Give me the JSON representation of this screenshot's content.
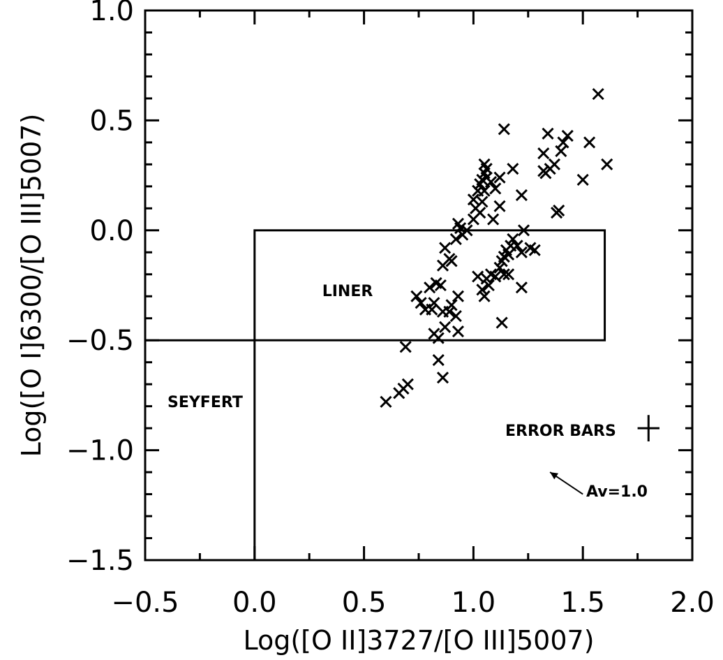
{
  "chart_data": {
    "type": "scatter",
    "title": "",
    "xlabel": "Log([O II]3727/[O III]5007)",
    "ylabel": "Log([O I]6300/[O III]5007)",
    "xlim": [
      -0.5,
      2.0
    ],
    "ylim": [
      -1.5,
      1.0
    ],
    "x_ticks": [
      -0.5,
      0.0,
      0.5,
      1.0,
      1.5,
      2.0
    ],
    "x_tick_labels": [
      "−0.5",
      "0.0",
      "0.5",
      "1.0",
      "1.5",
      "2.0"
    ],
    "y_ticks": [
      -1.5,
      -1.0,
      -0.5,
      0.0,
      0.5,
      1.0
    ],
    "y_tick_labels": [
      "−1.5",
      "−1.0",
      "−0.5",
      "0.0",
      "0.5",
      "1.0"
    ],
    "grid": false,
    "marker": "x",
    "marker_color": "#000000",
    "regions": {
      "liner_box": {
        "x": [
          0.0,
          1.6
        ],
        "y": [
          -0.5,
          0.0
        ],
        "label": "LINER"
      },
      "seyfert": {
        "x_max": 0.0,
        "y_max": -0.5,
        "label": "SEYFERT"
      }
    },
    "error_bars": {
      "label": "ERROR BARS",
      "x": 1.8,
      "y": -0.9,
      "dx": 0.05,
      "dy": 0.06
    },
    "reddening_vector": {
      "label": "Av=1.0",
      "from": [
        1.5,
        -1.2
      ],
      "to": [
        1.35,
        -1.1
      ]
    },
    "points": [
      [
        0.6,
        -0.78
      ],
      [
        0.66,
        -0.74
      ],
      [
        0.68,
        -0.72
      ],
      [
        0.7,
        -0.7
      ],
      [
        0.69,
        -0.53
      ],
      [
        0.84,
        -0.59
      ],
      [
        0.86,
        -0.67
      ],
      [
        0.82,
        -0.47
      ],
      [
        0.84,
        -0.49
      ],
      [
        0.74,
        -0.3
      ],
      [
        0.76,
        -0.33
      ],
      [
        0.78,
        -0.36
      ],
      [
        0.8,
        -0.26
      ],
      [
        0.82,
        -0.33
      ],
      [
        0.81,
        -0.36
      ],
      [
        0.83,
        -0.24
      ],
      [
        0.85,
        -0.25
      ],
      [
        0.86,
        -0.37
      ],
      [
        0.87,
        -0.44
      ],
      [
        0.89,
        -0.37
      ],
      [
        0.9,
        -0.34
      ],
      [
        0.92,
        -0.39
      ],
      [
        0.93,
        -0.46
      ],
      [
        0.93,
        -0.3
      ],
      [
        0.86,
        -0.16
      ],
      [
        0.87,
        -0.08
      ],
      [
        0.89,
        -0.13
      ],
      [
        0.9,
        -0.14
      ],
      [
        0.92,
        -0.04
      ],
      [
        0.94,
        0.01
      ],
      [
        0.95,
        -0.02
      ],
      [
        0.97,
        0.0
      ],
      [
        0.93,
        0.03
      ],
      [
        1.0,
        0.05
      ],
      [
        1.01,
        0.1
      ],
      [
        1.03,
        0.08
      ],
      [
        1.04,
        0.13
      ],
      [
        1.05,
        0.18
      ],
      [
        1.0,
        0.14
      ],
      [
        1.02,
        0.18
      ],
      [
        1.03,
        0.21
      ],
      [
        1.04,
        0.23
      ],
      [
        1.05,
        0.26
      ],
      [
        1.06,
        0.28
      ],
      [
        1.08,
        0.22
      ],
      [
        1.1,
        0.19
      ],
      [
        1.12,
        0.11
      ],
      [
        1.09,
        0.05
      ],
      [
        1.06,
        0.24
      ],
      [
        1.05,
        0.3
      ],
      [
        1.14,
        0.46
      ],
      [
        1.12,
        0.24
      ],
      [
        1.18,
        0.28
      ],
      [
        1.22,
        0.16
      ],
      [
        1.02,
        -0.21
      ],
      [
        1.04,
        -0.27
      ],
      [
        1.05,
        -0.3
      ],
      [
        1.07,
        -0.25
      ],
      [
        1.06,
        -0.22
      ],
      [
        1.08,
        -0.2
      ],
      [
        1.1,
        -0.21
      ],
      [
        1.12,
        -0.17
      ],
      [
        1.13,
        -0.14
      ],
      [
        1.14,
        -0.12
      ],
      [
        1.15,
        -0.09
      ],
      [
        1.16,
        -0.11
      ],
      [
        1.17,
        -0.07
      ],
      [
        1.18,
        -0.04
      ],
      [
        1.2,
        -0.07
      ],
      [
        1.22,
        -0.1
      ],
      [
        1.14,
        -0.2
      ],
      [
        1.16,
        -0.2
      ],
      [
        1.13,
        -0.42
      ],
      [
        1.23,
        0.0
      ],
      [
        1.22,
        -0.26
      ],
      [
        1.26,
        -0.08
      ],
      [
        1.28,
        -0.09
      ],
      [
        1.32,
        0.27
      ],
      [
        1.33,
        0.26
      ],
      [
        1.35,
        0.28
      ],
      [
        1.34,
        0.44
      ],
      [
        1.32,
        0.35
      ],
      [
        1.37,
        0.3
      ],
      [
        1.38,
        0.08
      ],
      [
        1.39,
        0.09
      ],
      [
        1.4,
        0.36
      ],
      [
        1.41,
        0.4
      ],
      [
        1.43,
        0.43
      ],
      [
        1.5,
        0.23
      ],
      [
        1.53,
        0.4
      ],
      [
        1.57,
        0.62
      ],
      [
        1.61,
        0.3
      ]
    ]
  }
}
